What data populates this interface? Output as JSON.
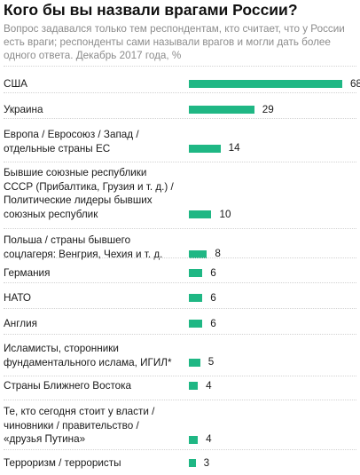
{
  "chart_data": {
    "type": "bar",
    "orientation": "horizontal",
    "title": "Кого бы вы назвали врагами России?",
    "subtitle": "Вопрос задавался только тем респондентам, кто считает, что у России есть враги; респонденты сами называли врагов и могли дать более одного ответа. Декабрь 2017 года, %",
    "bar_color": "#1fb784",
    "xlim": [
      0,
      68
    ],
    "categories": [
      "США",
      "Украина",
      "Европа / Евросоюз / Запад /\nотдельные страны ЕС",
      "Бывшие союзные республики\nСССР (Прибалтика, Грузия и т. д.) /\nПолитические лидеры бывших\nсоюзных республик",
      "Польша  / страны бывшего\nсоцлагеря: Венгрия, Чехия и т. д.",
      "Германия",
      "НАТО",
      "Англия",
      "Исламисты, сторонники\nфундаментального ислама, ИГИЛ*",
      "Страны Ближнего Востока",
      "Те, кто сегодня стоит у власти /\nчиновники / правительство /\n«друзья Путина»",
      "Терроризм / террористы"
    ],
    "values": [
      68,
      29,
      14,
      10,
      8,
      6,
      6,
      6,
      5,
      4,
      4,
      3
    ]
  }
}
